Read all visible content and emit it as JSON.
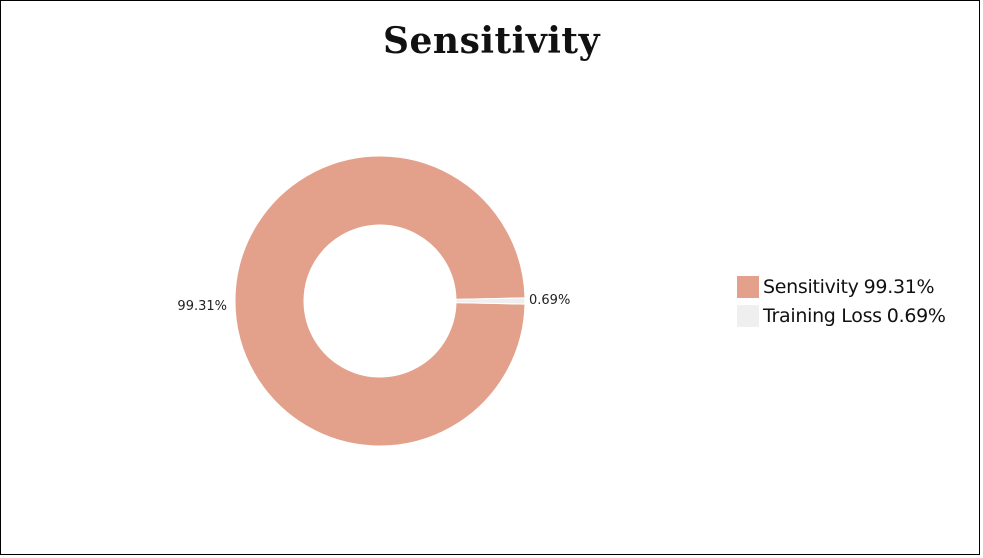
{
  "chart_data": {
    "type": "pie",
    "title": "Sensitivity",
    "donut": true,
    "slices": [
      {
        "name": "Sensitivity",
        "value": 99.31,
        "label": "99.31%",
        "legend_value": "99.31%",
        "color": "#E3A18B"
      },
      {
        "name": "Training Loss",
        "value": 0.69,
        "label": "0.69%",
        "legend_value": "0.69%",
        "color": "#EFEFEF"
      }
    ],
    "legend_position": "right"
  }
}
